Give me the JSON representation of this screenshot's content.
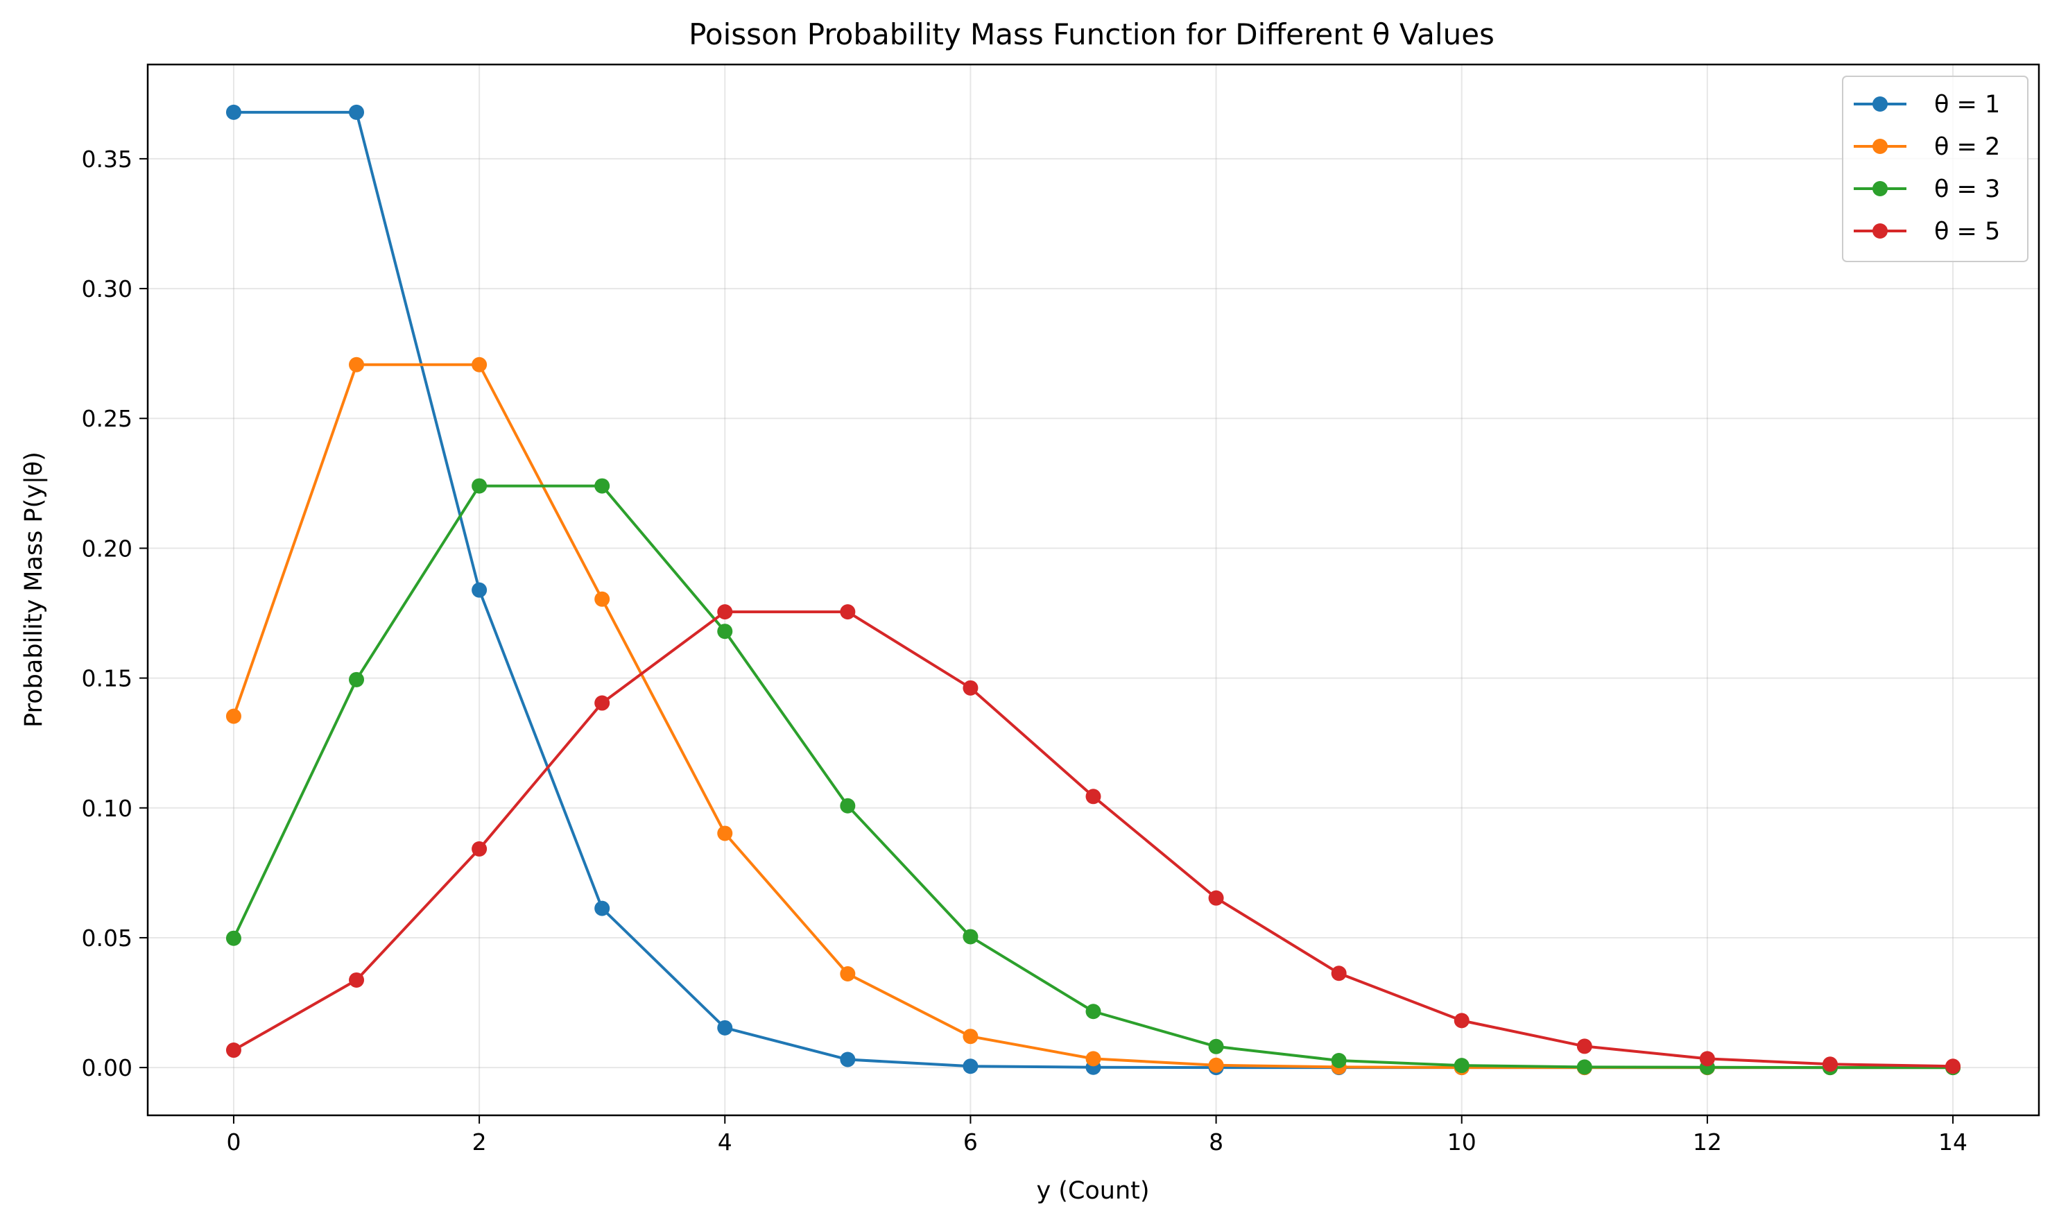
{
  "chart_data": {
    "type": "line",
    "title": "Poisson Probability Mass Function for Different θ Values",
    "xlabel": "y (Count)",
    "ylabel": "Probability Mass P(y|θ)",
    "xlim": [
      -0.7,
      14.7
    ],
    "ylim": [
      -0.0184,
      0.3863
    ],
    "xticks": [
      0,
      2,
      4,
      6,
      8,
      10,
      12,
      14
    ],
    "yticks": [
      0.0,
      0.05,
      0.1,
      0.15,
      0.2,
      0.25,
      0.3,
      0.35
    ],
    "ytick_labels": [
      "0.00",
      "0.05",
      "0.10",
      "0.15",
      "0.20",
      "0.25",
      "0.30",
      "0.35"
    ],
    "grid": true,
    "legend_position": "top-right",
    "x": [
      0,
      1,
      2,
      3,
      4,
      5,
      6,
      7,
      8,
      9,
      10,
      11,
      12,
      13,
      14
    ],
    "series": [
      {
        "name": "θ = 1",
        "color": "#1f77b4",
        "values": [
          0.3679,
          0.3679,
          0.1839,
          0.0613,
          0.0153,
          0.0031,
          0.0005,
          0.0001,
          0.0,
          0.0,
          0.0,
          0.0,
          0.0,
          0.0,
          0.0
        ]
      },
      {
        "name": "θ = 2",
        "color": "#ff7f0e",
        "values": [
          0.1353,
          0.2707,
          0.2707,
          0.1804,
          0.0902,
          0.0361,
          0.012,
          0.0034,
          0.0009,
          0.0002,
          0.0,
          0.0,
          0.0,
          0.0,
          0.0
        ]
      },
      {
        "name": "θ = 3",
        "color": "#2ca02c",
        "values": [
          0.0498,
          0.1494,
          0.224,
          0.224,
          0.168,
          0.1008,
          0.0504,
          0.0216,
          0.0081,
          0.0027,
          0.0008,
          0.0002,
          0.0001,
          0.0,
          0.0
        ]
      },
      {
        "name": "θ = 5",
        "color": "#d62728",
        "values": [
          0.0067,
          0.0337,
          0.0842,
          0.1404,
          0.1755,
          0.1755,
          0.1462,
          0.1044,
          0.0653,
          0.0363,
          0.0181,
          0.0082,
          0.0034,
          0.0013,
          0.0005
        ]
      }
    ]
  }
}
